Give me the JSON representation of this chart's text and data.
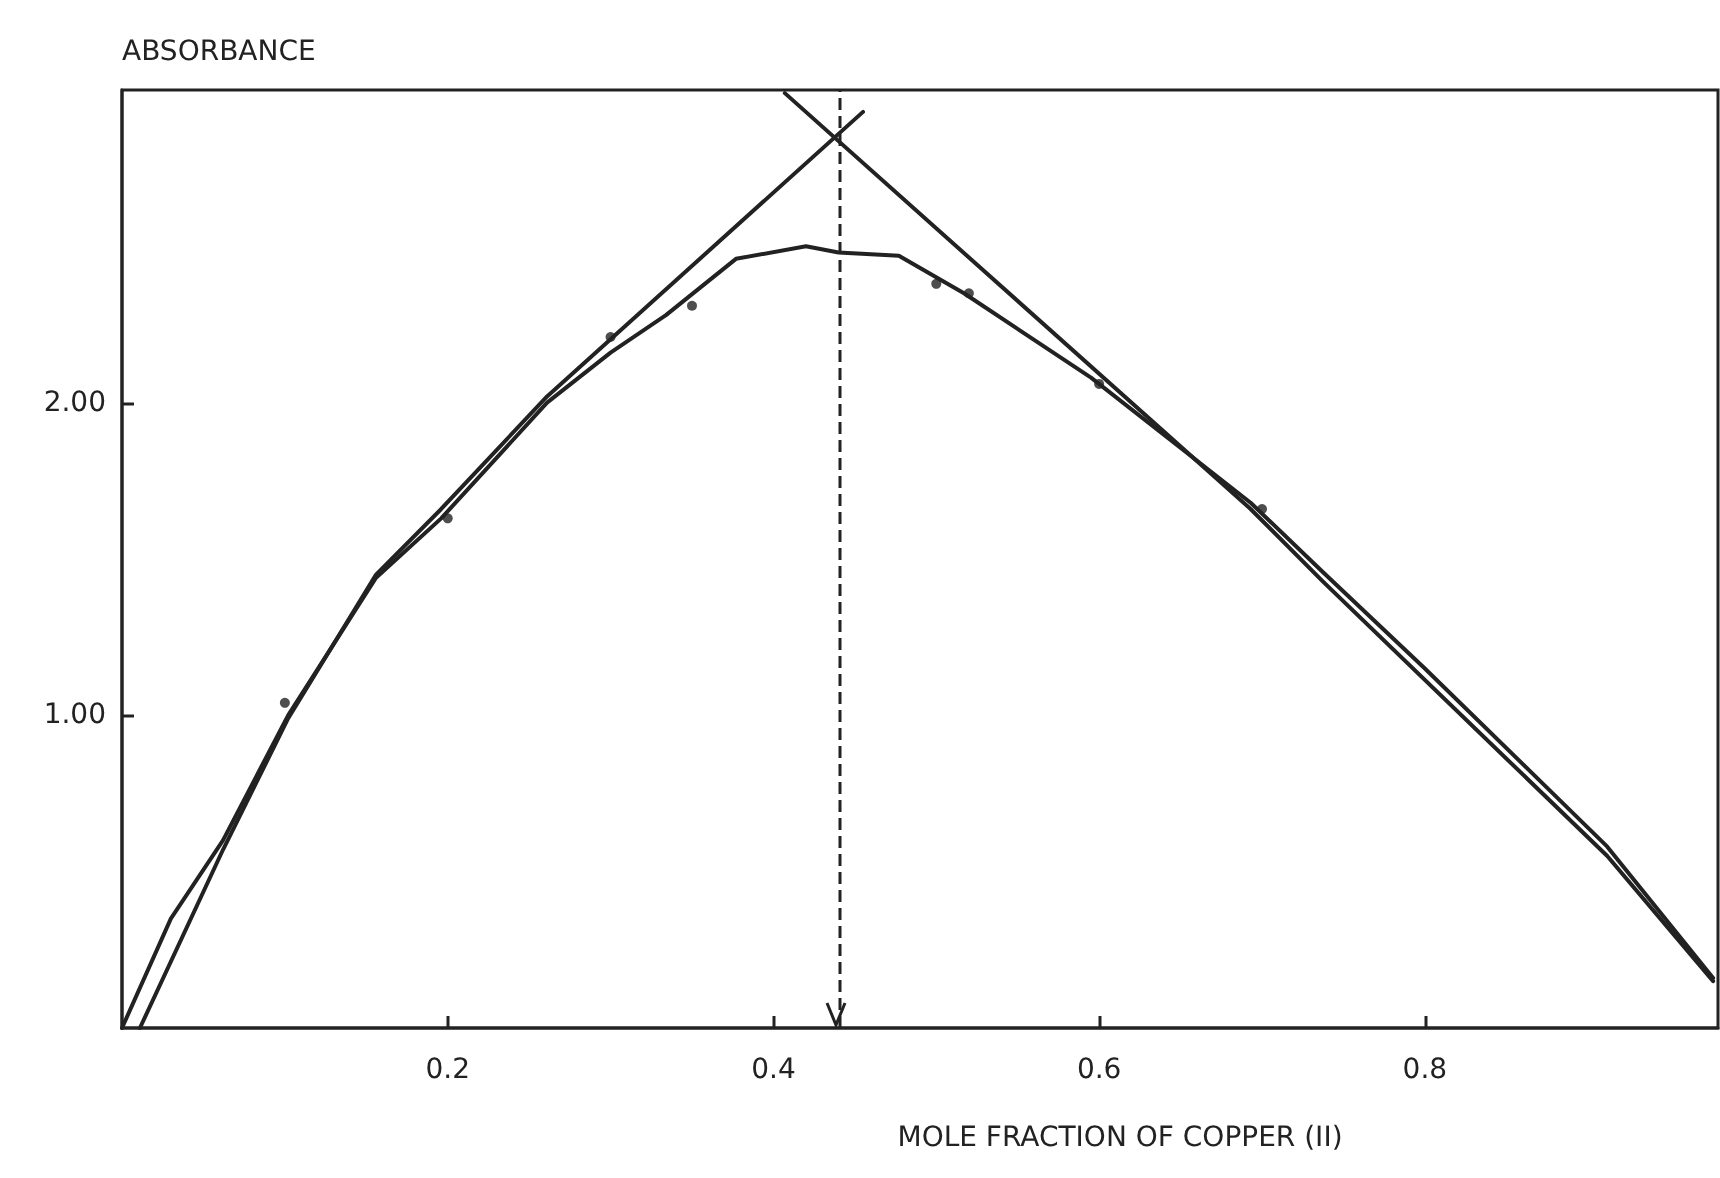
{
  "chart_data": {
    "type": "line",
    "xlabel": "MOLE FRACTION OF COPPER (II)",
    "ylabel": "ABSORBANCE",
    "xlim": [
      0,
      0.98
    ],
    "xticks": [
      0.2,
      0.4,
      0.6,
      0.8
    ],
    "ylim": [
      0,
      3.0
    ],
    "yticks": [
      {
        "value": 1,
        "label": "1.00"
      },
      {
        "value": 2,
        "label": "2.00"
      }
    ],
    "grid": false,
    "series": [
      {
        "color": "#222222",
        "marker": "none",
        "x": [
          0,
          0.03,
          0.062,
          0.102,
          0.156,
          0.196,
          0.261,
          0.3,
          0.334,
          0.377,
          0.42,
          0.44,
          0.477,
          0.517,
          0.595,
          0.693,
          0.737,
          0.8,
          0.912,
          0.977
        ],
        "values": [
          0,
          0.35,
          0.6,
          1.0,
          1.44,
          1.63,
          2.0,
          2.16,
          2.28,
          2.46,
          2.5,
          2.48,
          2.47,
          2.35,
          2.08,
          1.68,
          1.46,
          1.15,
          0.58,
          0.16
        ]
      },
      {
        "color": "#222222",
        "marker": "none",
        "x": [
          0.011,
          0.062,
          0.102,
          0.156,
          0.196,
          0.261,
          0.455
        ],
        "values": [
          0,
          0.57,
          0.99,
          1.45,
          1.66,
          2.02,
          2.93
        ]
      },
      {
        "color": "#222222",
        "marker": "none",
        "x": [
          0.407,
          0.693,
          0.737,
          0.912,
          0.977
        ],
        "values": [
          2.99,
          1.66,
          1.43,
          0.55,
          0.15
        ]
      },
      {
        "type": "scatter",
        "color": "#222222",
        "marker": "circle",
        "x": [
          0.1,
          0.2,
          0.3,
          0.35,
          0.5,
          0.52,
          0.6,
          0.7
        ],
        "values": [
          1.04,
          1.63,
          2.21,
          2.31,
          2.38,
          2.35,
          2.06,
          1.66
        ]
      }
    ],
    "ref_lines": [
      {
        "axis": "x",
        "value": 0.438,
        "line_style": "dashed",
        "color": "#222222"
      }
    ]
  }
}
